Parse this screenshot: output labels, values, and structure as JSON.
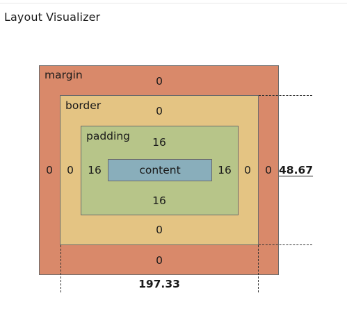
{
  "window": {
    "title": "Layout Visualizer"
  },
  "box_model": {
    "margin": {
      "label": "margin",
      "top": "0",
      "right": "0",
      "bottom": "0",
      "left": "0"
    },
    "border": {
      "label": "border",
      "top": "0",
      "right": "0",
      "bottom": "0",
      "left": "0"
    },
    "padding": {
      "label": "padding",
      "top": "16",
      "right": "16",
      "bottom": "16",
      "left": "16"
    },
    "content": {
      "label": "content"
    }
  },
  "dimensions": {
    "width": "197.33",
    "height": "48.67"
  },
  "colors": {
    "margin": "#d9896a",
    "border": "#e4c483",
    "padding": "#b7c589",
    "content": "#89aebb"
  }
}
